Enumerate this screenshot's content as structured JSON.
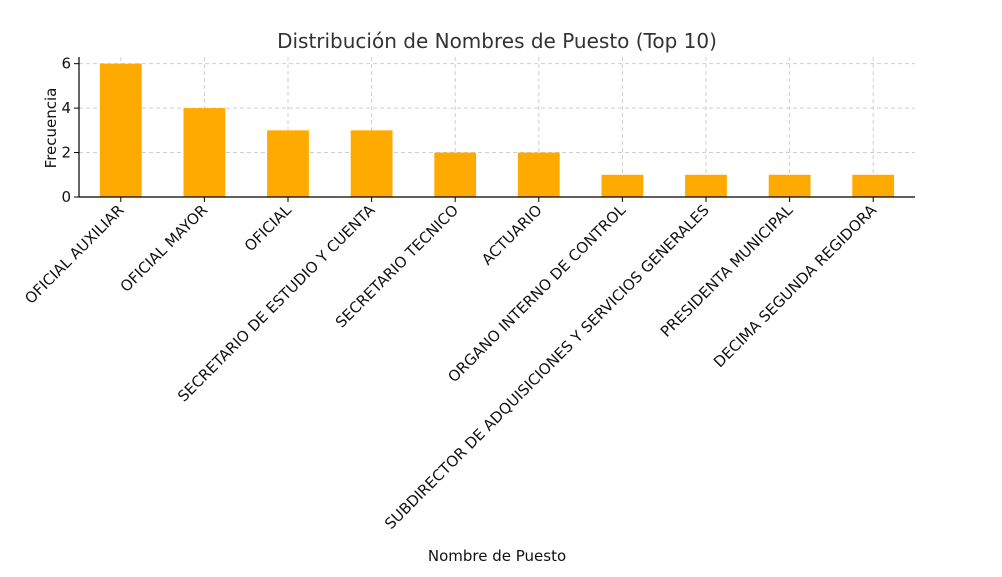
{
  "chart_data": {
    "type": "bar",
    "title": "Distribución de Nombres de Puesto (Top 10)",
    "xlabel": "Nombre de Puesto",
    "ylabel": "Frecuencia",
    "categories": [
      "OFICIAL AUXILIAR",
      "OFICIAL MAYOR",
      "OFICIAL",
      "SECRETARIO DE ESTUDIO Y CUENTA",
      "SECRETARIO TECNICO",
      "ACTUARIO",
      "ORGANO INTERNO DE CONTROL",
      "SUBDIRECTOR DE ADQUISICIONES Y SERVICIOS GENERALES",
      "PRESIDENTA MUNICIPAL",
      "DECIMA SEGUNDA REGIDORA"
    ],
    "values": [
      6,
      4,
      3,
      3,
      2,
      2,
      1,
      1,
      1,
      1
    ],
    "ylim": [
      0,
      6.3
    ],
    "yticks": [
      0,
      2,
      4,
      6
    ],
    "grid": true,
    "bar_color": "#FFAA00"
  }
}
